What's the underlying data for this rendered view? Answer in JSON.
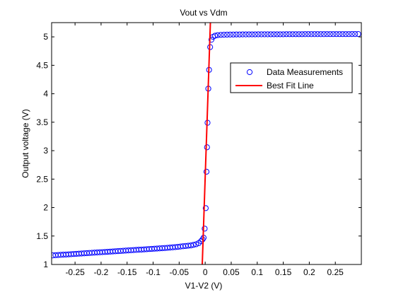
{
  "chart_data": {
    "type": "scatter",
    "title": "Vout vs Vdm",
    "xlabel": "V1-V2 (V)",
    "ylabel": "Output voltage (V)",
    "xlim": [
      -0.295,
      0.3
    ],
    "ylim": [
      1,
      5.25
    ],
    "grid": false,
    "legend_position": "top-right",
    "x_ticks": [
      -0.25,
      -0.2,
      -0.15,
      -0.1,
      -0.05,
      0,
      0.05,
      0.1,
      0.15,
      0.2,
      0.25
    ],
    "x_tick_labels": [
      "-0.25",
      "-0.2",
      "-0.15",
      "-0.1",
      "-0.05",
      "0",
      "0.05",
      "0.1",
      "0.15",
      "0.2",
      "0.25"
    ],
    "y_ticks": [
      1,
      1.5,
      2,
      2.5,
      3,
      3.5,
      4,
      4.5,
      5
    ],
    "y_tick_labels": [
      "1",
      "1.5",
      "2",
      "2.5",
      "3",
      "3.5",
      "4",
      "4.5",
      "5"
    ],
    "series": [
      {
        "name": "Data Measurements",
        "kind": "markers",
        "marker": "circle-open",
        "color": "#0000ff",
        "x": [
          -0.2925,
          -0.2875,
          -0.2825,
          -0.2775,
          -0.2725,
          -0.2675,
          -0.2625,
          -0.2575,
          -0.2525,
          -0.2475,
          -0.2425,
          -0.2375,
          -0.2325,
          -0.2275,
          -0.2225,
          -0.2175,
          -0.2125,
          -0.2075,
          -0.2025,
          -0.1975,
          -0.1925,
          -0.1875,
          -0.1825,
          -0.1775,
          -0.1725,
          -0.1675,
          -0.1625,
          -0.1575,
          -0.1525,
          -0.1475,
          -0.1425,
          -0.1375,
          -0.1325,
          -0.1275,
          -0.1225,
          -0.1175,
          -0.1125,
          -0.1075,
          -0.1025,
          -0.0975,
          -0.0925,
          -0.0875,
          -0.0825,
          -0.0775,
          -0.0725,
          -0.0675,
          -0.0625,
          -0.0575,
          -0.0525,
          -0.0475,
          -0.0425,
          -0.0375,
          -0.0325,
          -0.0275,
          -0.0225,
          -0.0175,
          -0.0125,
          -0.008,
          -0.005,
          -0.003,
          -0.001,
          0.001,
          0.0025,
          0.0035,
          0.0045,
          0.006,
          0.0075,
          0.0095,
          0.012,
          0.015,
          0.019,
          0.024,
          0.03,
          0.036,
          0.042,
          0.048,
          0.054,
          0.06,
          0.066,
          0.072,
          0.078,
          0.084,
          0.09,
          0.096,
          0.102,
          0.108,
          0.114,
          0.12,
          0.126,
          0.132,
          0.138,
          0.144,
          0.15,
          0.156,
          0.162,
          0.168,
          0.174,
          0.18,
          0.186,
          0.192,
          0.198,
          0.204,
          0.21,
          0.216,
          0.222,
          0.228,
          0.234,
          0.24,
          0.246,
          0.252,
          0.258,
          0.264,
          0.27,
          0.276,
          0.282,
          0.288,
          0.294
        ],
        "y": [
          1.16,
          1.163,
          1.166,
          1.169,
          1.172,
          1.175,
          1.178,
          1.181,
          1.184,
          1.187,
          1.19,
          1.193,
          1.196,
          1.199,
          1.202,
          1.205,
          1.208,
          1.211,
          1.214,
          1.217,
          1.22,
          1.223,
          1.226,
          1.229,
          1.232,
          1.235,
          1.238,
          1.241,
          1.244,
          1.247,
          1.25,
          1.253,
          1.256,
          1.259,
          1.262,
          1.265,
          1.268,
          1.271,
          1.274,
          1.277,
          1.28,
          1.283,
          1.286,
          1.289,
          1.293,
          1.297,
          1.301,
          1.305,
          1.31,
          1.315,
          1.32,
          1.325,
          1.33,
          1.335,
          1.345,
          1.355,
          1.375,
          1.41,
          1.44,
          1.47,
          1.63,
          1.99,
          2.63,
          3.06,
          3.49,
          4.09,
          4.42,
          4.82,
          4.95,
          5.0,
          5.02,
          5.03,
          5.035,
          5.037,
          5.039,
          5.04,
          5.041,
          5.042,
          5.042,
          5.043,
          5.043,
          5.044,
          5.044,
          5.044,
          5.045,
          5.045,
          5.045,
          5.045,
          5.046,
          5.046,
          5.046,
          5.046,
          5.046,
          5.047,
          5.047,
          5.047,
          5.047,
          5.047,
          5.047,
          5.048,
          5.048,
          5.048,
          5.048,
          5.048,
          5.048,
          5.048,
          5.049,
          5.049,
          5.049,
          5.049,
          5.049,
          5.049,
          5.049,
          5.049,
          5.05,
          5.05,
          5.05
        ]
      },
      {
        "name": "Best Fit Line",
        "kind": "line",
        "color": "#ff0000",
        "x": [
          -0.006,
          0.01
        ],
        "y": [
          0.9,
          5.25
        ]
      }
    ]
  }
}
